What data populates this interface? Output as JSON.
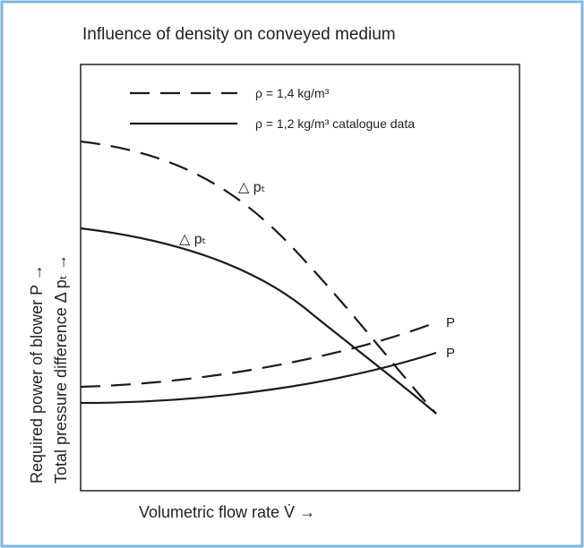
{
  "title": "Influence of density on conveyed medium",
  "legend": [
    {
      "label": "ρ = 1,4 kg/m³"
    },
    {
      "label": "ρ = 1,2 kg/m³ catalogue data"
    }
  ],
  "curve_labels": {
    "pressure_dashed": "△ pₜ",
    "pressure_solid": "△ pₜ",
    "power_dashed": "P",
    "power_solid": "P"
  },
  "axes": {
    "y_label_1": "Required power of blower P →",
    "y_label_2": "Total pressure difference Δ pₜ →",
    "x_label": "Volumetric flow rate V̇  →"
  }
}
